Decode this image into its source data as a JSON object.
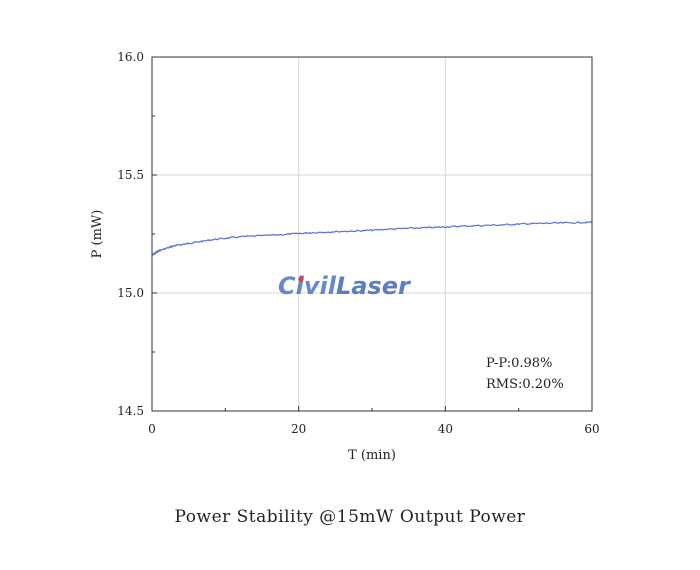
{
  "chart_data": {
    "type": "line",
    "title": "",
    "xlabel": "T (min)",
    "ylabel": "P (mW)",
    "xlim": [
      0,
      60
    ],
    "ylim": [
      14.5,
      16.0
    ],
    "x_ticks": [
      0,
      20,
      40,
      60
    ],
    "y_ticks": [
      14.5,
      15.0,
      15.5,
      16.0
    ],
    "y_tick_labels": [
      "14.5",
      "15.0",
      "15.5",
      "16.0"
    ],
    "grid": true,
    "series": [
      {
        "color": "#5b6fd6",
        "x": [
          0,
          0.5,
          1,
          2,
          3,
          4,
          5,
          6,
          8,
          10,
          12,
          15,
          18,
          20,
          22,
          25,
          28,
          30,
          32,
          35,
          38,
          40,
          42,
          45,
          48,
          50,
          52,
          55,
          58,
          60
        ],
        "y": [
          15.16,
          15.17,
          15.18,
          15.19,
          15.2,
          15.205,
          15.21,
          15.215,
          15.225,
          15.232,
          15.238,
          15.243,
          15.248,
          15.252,
          15.256,
          15.26,
          15.263,
          15.266,
          15.27,
          15.274,
          15.277,
          15.28,
          15.283,
          15.286,
          15.289,
          15.292,
          15.294,
          15.296,
          15.298,
          15.3
        ]
      }
    ],
    "annotations": [
      "P-P:0.98%",
      "RMS:0.20%"
    ]
  },
  "watermark": {
    "text_left": "Civil",
    "text_right": "Laser",
    "color_left": "#5b7fc8",
    "color_right": "#4f74c2",
    "accent_color": "#e23b3b"
  },
  "caption": "Power Stability @15mW Output Power"
}
